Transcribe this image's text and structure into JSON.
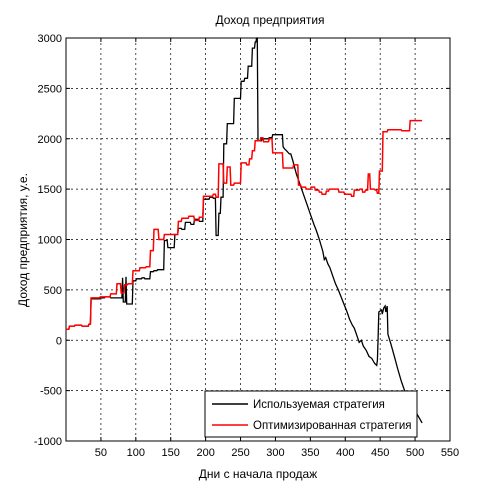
{
  "chart_data": {
    "type": "line",
    "title": "Доход предприятия",
    "xlabel": "Дни с начала продаж",
    "ylabel": "Доход предприятия, у.е.",
    "xlim": [
      0,
      550
    ],
    "ylim": [
      -1000,
      3000
    ],
    "x_ticks": [
      50,
      100,
      150,
      200,
      250,
      300,
      350,
      400,
      450,
      500,
      550
    ],
    "y_ticks": [
      -1000,
      -500,
      0,
      500,
      1000,
      1500,
      2000,
      2500,
      3000
    ],
    "grid": true,
    "legend_position": "bottom-right",
    "series": [
      {
        "name": "Используемая стратегия",
        "color": "#000000",
        "points": [
          [
            0,
            110
          ],
          [
            4,
            110
          ],
          [
            5,
            140
          ],
          [
            12,
            140
          ],
          [
            13,
            150
          ],
          [
            22,
            150
          ],
          [
            23,
            140
          ],
          [
            32,
            140
          ],
          [
            33,
            160
          ],
          [
            35,
            160
          ],
          [
            36,
            410
          ],
          [
            48,
            410
          ],
          [
            49,
            420
          ],
          [
            55,
            420
          ],
          [
            56,
            430
          ],
          [
            63,
            430
          ],
          [
            64,
            420
          ],
          [
            80,
            420
          ],
          [
            81,
            620
          ],
          [
            82,
            380
          ],
          [
            85,
            380
          ],
          [
            86,
            630
          ],
          [
            87,
            360
          ],
          [
            95,
            360
          ],
          [
            96,
            590
          ],
          [
            100,
            590
          ],
          [
            101,
            610
          ],
          [
            108,
            610
          ],
          [
            109,
            620
          ],
          [
            112,
            620
          ],
          [
            113,
            610
          ],
          [
            120,
            610
          ],
          [
            121,
            680
          ],
          [
            125,
            680
          ],
          [
            126,
            690
          ],
          [
            130,
            690
          ],
          [
            131,
            700
          ],
          [
            140,
            700
          ],
          [
            141,
            990
          ],
          [
            145,
            990
          ],
          [
            146,
            920
          ],
          [
            155,
            920
          ],
          [
            156,
            1050
          ],
          [
            160,
            1050
          ],
          [
            161,
            1110
          ],
          [
            165,
            1110
          ],
          [
            166,
            1100
          ],
          [
            170,
            1100
          ],
          [
            171,
            1170
          ],
          [
            178,
            1170
          ],
          [
            179,
            1150
          ],
          [
            183,
            1150
          ],
          [
            184,
            1200
          ],
          [
            190,
            1200
          ],
          [
            191,
            1180
          ],
          [
            196,
            1180
          ],
          [
            197,
            1400
          ],
          [
            205,
            1400
          ],
          [
            206,
            1420
          ],
          [
            210,
            1420
          ],
          [
            211,
            1410
          ],
          [
            214,
            1410
          ],
          [
            215,
            1040
          ],
          [
            218,
            1040
          ],
          [
            219,
            1260
          ],
          [
            221,
            1260
          ],
          [
            222,
            1420
          ],
          [
            225,
            1420
          ],
          [
            226,
            1950
          ],
          [
            230,
            1950
          ],
          [
            231,
            2150
          ],
          [
            240,
            2150
          ],
          [
            241,
            2400
          ],
          [
            250,
            2400
          ],
          [
            251,
            2570
          ],
          [
            255,
            2570
          ],
          [
            256,
            2600
          ],
          [
            260,
            2600
          ],
          [
            261,
            2720
          ],
          [
            266,
            2720
          ],
          [
            267,
            2900
          ],
          [
            270,
            2900
          ],
          [
            271,
            2960
          ],
          [
            272,
            2960
          ],
          [
            273,
            3000
          ],
          [
            274,
            3000
          ],
          [
            275,
            1980
          ],
          [
            280,
            1980
          ],
          [
            281,
            2000
          ],
          [
            290,
            2000
          ],
          [
            291,
            2010
          ],
          [
            295,
            2010
          ],
          [
            296,
            2040
          ],
          [
            310,
            2040
          ],
          [
            311,
            1920
          ],
          [
            313,
            1900
          ],
          [
            316,
            1880
          ],
          [
            320,
            1850
          ],
          [
            322,
            1850
          ],
          [
            325,
            1780
          ],
          [
            330,
            1650
          ],
          [
            335,
            1550
          ],
          [
            340,
            1450
          ],
          [
            345,
            1350
          ],
          [
            350,
            1250
          ],
          [
            355,
            1150
          ],
          [
            358,
            1100
          ],
          [
            362,
            1020
          ],
          [
            365,
            950
          ],
          [
            368,
            880
          ],
          [
            370,
            800
          ],
          [
            372,
            820
          ],
          [
            375,
            760
          ],
          [
            378,
            720
          ],
          [
            382,
            640
          ],
          [
            386,
            560
          ],
          [
            390,
            500
          ],
          [
            394,
            430
          ],
          [
            398,
            360
          ],
          [
            402,
            290
          ],
          [
            406,
            210
          ],
          [
            410,
            150
          ],
          [
            413,
            120
          ],
          [
            416,
            60
          ],
          [
            420,
            -20
          ],
          [
            423,
            0
          ],
          [
            426,
            -60
          ],
          [
            430,
            -100
          ],
          [
            434,
            -160
          ],
          [
            438,
            -180
          ],
          [
            442,
            -230
          ],
          [
            445,
            -250
          ],
          [
            446,
            -200
          ],
          [
            447,
            20
          ],
          [
            448,
            280
          ],
          [
            452,
            300
          ],
          [
            453,
            260
          ],
          [
            455,
            320
          ],
          [
            457,
            340
          ],
          [
            458,
            280
          ],
          [
            460,
            340
          ],
          [
            461,
            60
          ],
          [
            465,
            -30
          ],
          [
            470,
            -150
          ],
          [
            475,
            -280
          ],
          [
            480,
            -400
          ],
          [
            485,
            -500
          ],
          [
            490,
            -600
          ],
          [
            493,
            -620
          ],
          [
            495,
            -580
          ],
          [
            497,
            -660
          ],
          [
            500,
            -700
          ],
          [
            505,
            -760
          ],
          [
            510,
            -820
          ]
        ]
      },
      {
        "name": "Оптимизированная стратегия",
        "color": "#ff0000",
        "points": [
          [
            0,
            110
          ],
          [
            4,
            110
          ],
          [
            5,
            140
          ],
          [
            12,
            140
          ],
          [
            13,
            150
          ],
          [
            22,
            150
          ],
          [
            23,
            140
          ],
          [
            32,
            140
          ],
          [
            33,
            160
          ],
          [
            35,
            160
          ],
          [
            36,
            420
          ],
          [
            48,
            420
          ],
          [
            49,
            430
          ],
          [
            63,
            430
          ],
          [
            64,
            460
          ],
          [
            72,
            460
          ],
          [
            73,
            560
          ],
          [
            78,
            560
          ],
          [
            79,
            470
          ],
          [
            83,
            470
          ],
          [
            84,
            550
          ],
          [
            88,
            550
          ],
          [
            89,
            560
          ],
          [
            95,
            560
          ],
          [
            96,
            690
          ],
          [
            105,
            690
          ],
          [
            106,
            720
          ],
          [
            114,
            720
          ],
          [
            115,
            730
          ],
          [
            120,
            730
          ],
          [
            121,
            890
          ],
          [
            125,
            890
          ],
          [
            126,
            1100
          ],
          [
            132,
            1100
          ],
          [
            133,
            1000
          ],
          [
            140,
            1000
          ],
          [
            141,
            1050
          ],
          [
            160,
            1050
          ],
          [
            161,
            1180
          ],
          [
            165,
            1180
          ],
          [
            166,
            1210
          ],
          [
            175,
            1210
          ],
          [
            176,
            1230
          ],
          [
            183,
            1230
          ],
          [
            184,
            1190
          ],
          [
            190,
            1190
          ],
          [
            191,
            1220
          ],
          [
            196,
            1220
          ],
          [
            197,
            1430
          ],
          [
            210,
            1430
          ],
          [
            211,
            1450
          ],
          [
            214,
            1450
          ],
          [
            215,
            1420
          ],
          [
            218,
            1420
          ],
          [
            219,
            1750
          ],
          [
            225,
            1750
          ],
          [
            226,
            1560
          ],
          [
            230,
            1560
          ],
          [
            231,
            1720
          ],
          [
            235,
            1720
          ],
          [
            236,
            1540
          ],
          [
            240,
            1540
          ],
          [
            241,
            1560
          ],
          [
            250,
            1560
          ],
          [
            251,
            1760
          ],
          [
            258,
            1760
          ],
          [
            259,
            1740
          ],
          [
            262,
            1740
          ],
          [
            263,
            1800
          ],
          [
            266,
            1800
          ],
          [
            267,
            1880
          ],
          [
            270,
            1880
          ],
          [
            271,
            1980
          ],
          [
            278,
            1980
          ],
          [
            279,
            2010
          ],
          [
            282,
            2010
          ],
          [
            283,
            1970
          ],
          [
            290,
            1970
          ],
          [
            291,
            2000
          ],
          [
            295,
            2000
          ],
          [
            296,
            1860
          ],
          [
            300,
            1860
          ],
          [
            301,
            1860
          ],
          [
            310,
            1860
          ],
          [
            311,
            1710
          ],
          [
            325,
            1710
          ],
          [
            326,
            1740
          ],
          [
            332,
            1740
          ],
          [
            333,
            1540
          ],
          [
            336,
            1540
          ],
          [
            337,
            1520
          ],
          [
            343,
            1520
          ],
          [
            344,
            1500
          ],
          [
            350,
            1500
          ],
          [
            351,
            1520
          ],
          [
            356,
            1520
          ],
          [
            357,
            1490
          ],
          [
            362,
            1490
          ],
          [
            363,
            1470
          ],
          [
            366,
            1470
          ],
          [
            367,
            1450
          ],
          [
            372,
            1450
          ],
          [
            373,
            1480
          ],
          [
            376,
            1480
          ],
          [
            377,
            1500
          ],
          [
            390,
            1500
          ],
          [
            391,
            1470
          ],
          [
            398,
            1470
          ],
          [
            399,
            1450
          ],
          [
            408,
            1450
          ],
          [
            409,
            1430
          ],
          [
            412,
            1430
          ],
          [
            413,
            1490
          ],
          [
            420,
            1490
          ],
          [
            421,
            1500
          ],
          [
            424,
            1500
          ],
          [
            425,
            1470
          ],
          [
            428,
            1470
          ],
          [
            429,
            1490
          ],
          [
            432,
            1490
          ],
          [
            433,
            1650
          ],
          [
            435,
            1650
          ],
          [
            436,
            1500
          ],
          [
            442,
            1500
          ],
          [
            443,
            1490
          ],
          [
            445,
            1490
          ],
          [
            446,
            1460
          ],
          [
            448,
            1460
          ],
          [
            449,
            1680
          ],
          [
            453,
            1680
          ],
          [
            454,
            2070
          ],
          [
            460,
            2070
          ],
          [
            461,
            2090
          ],
          [
            480,
            2090
          ],
          [
            481,
            2080
          ],
          [
            492,
            2080
          ],
          [
            493,
            2180
          ],
          [
            510,
            2180
          ]
        ]
      }
    ]
  }
}
